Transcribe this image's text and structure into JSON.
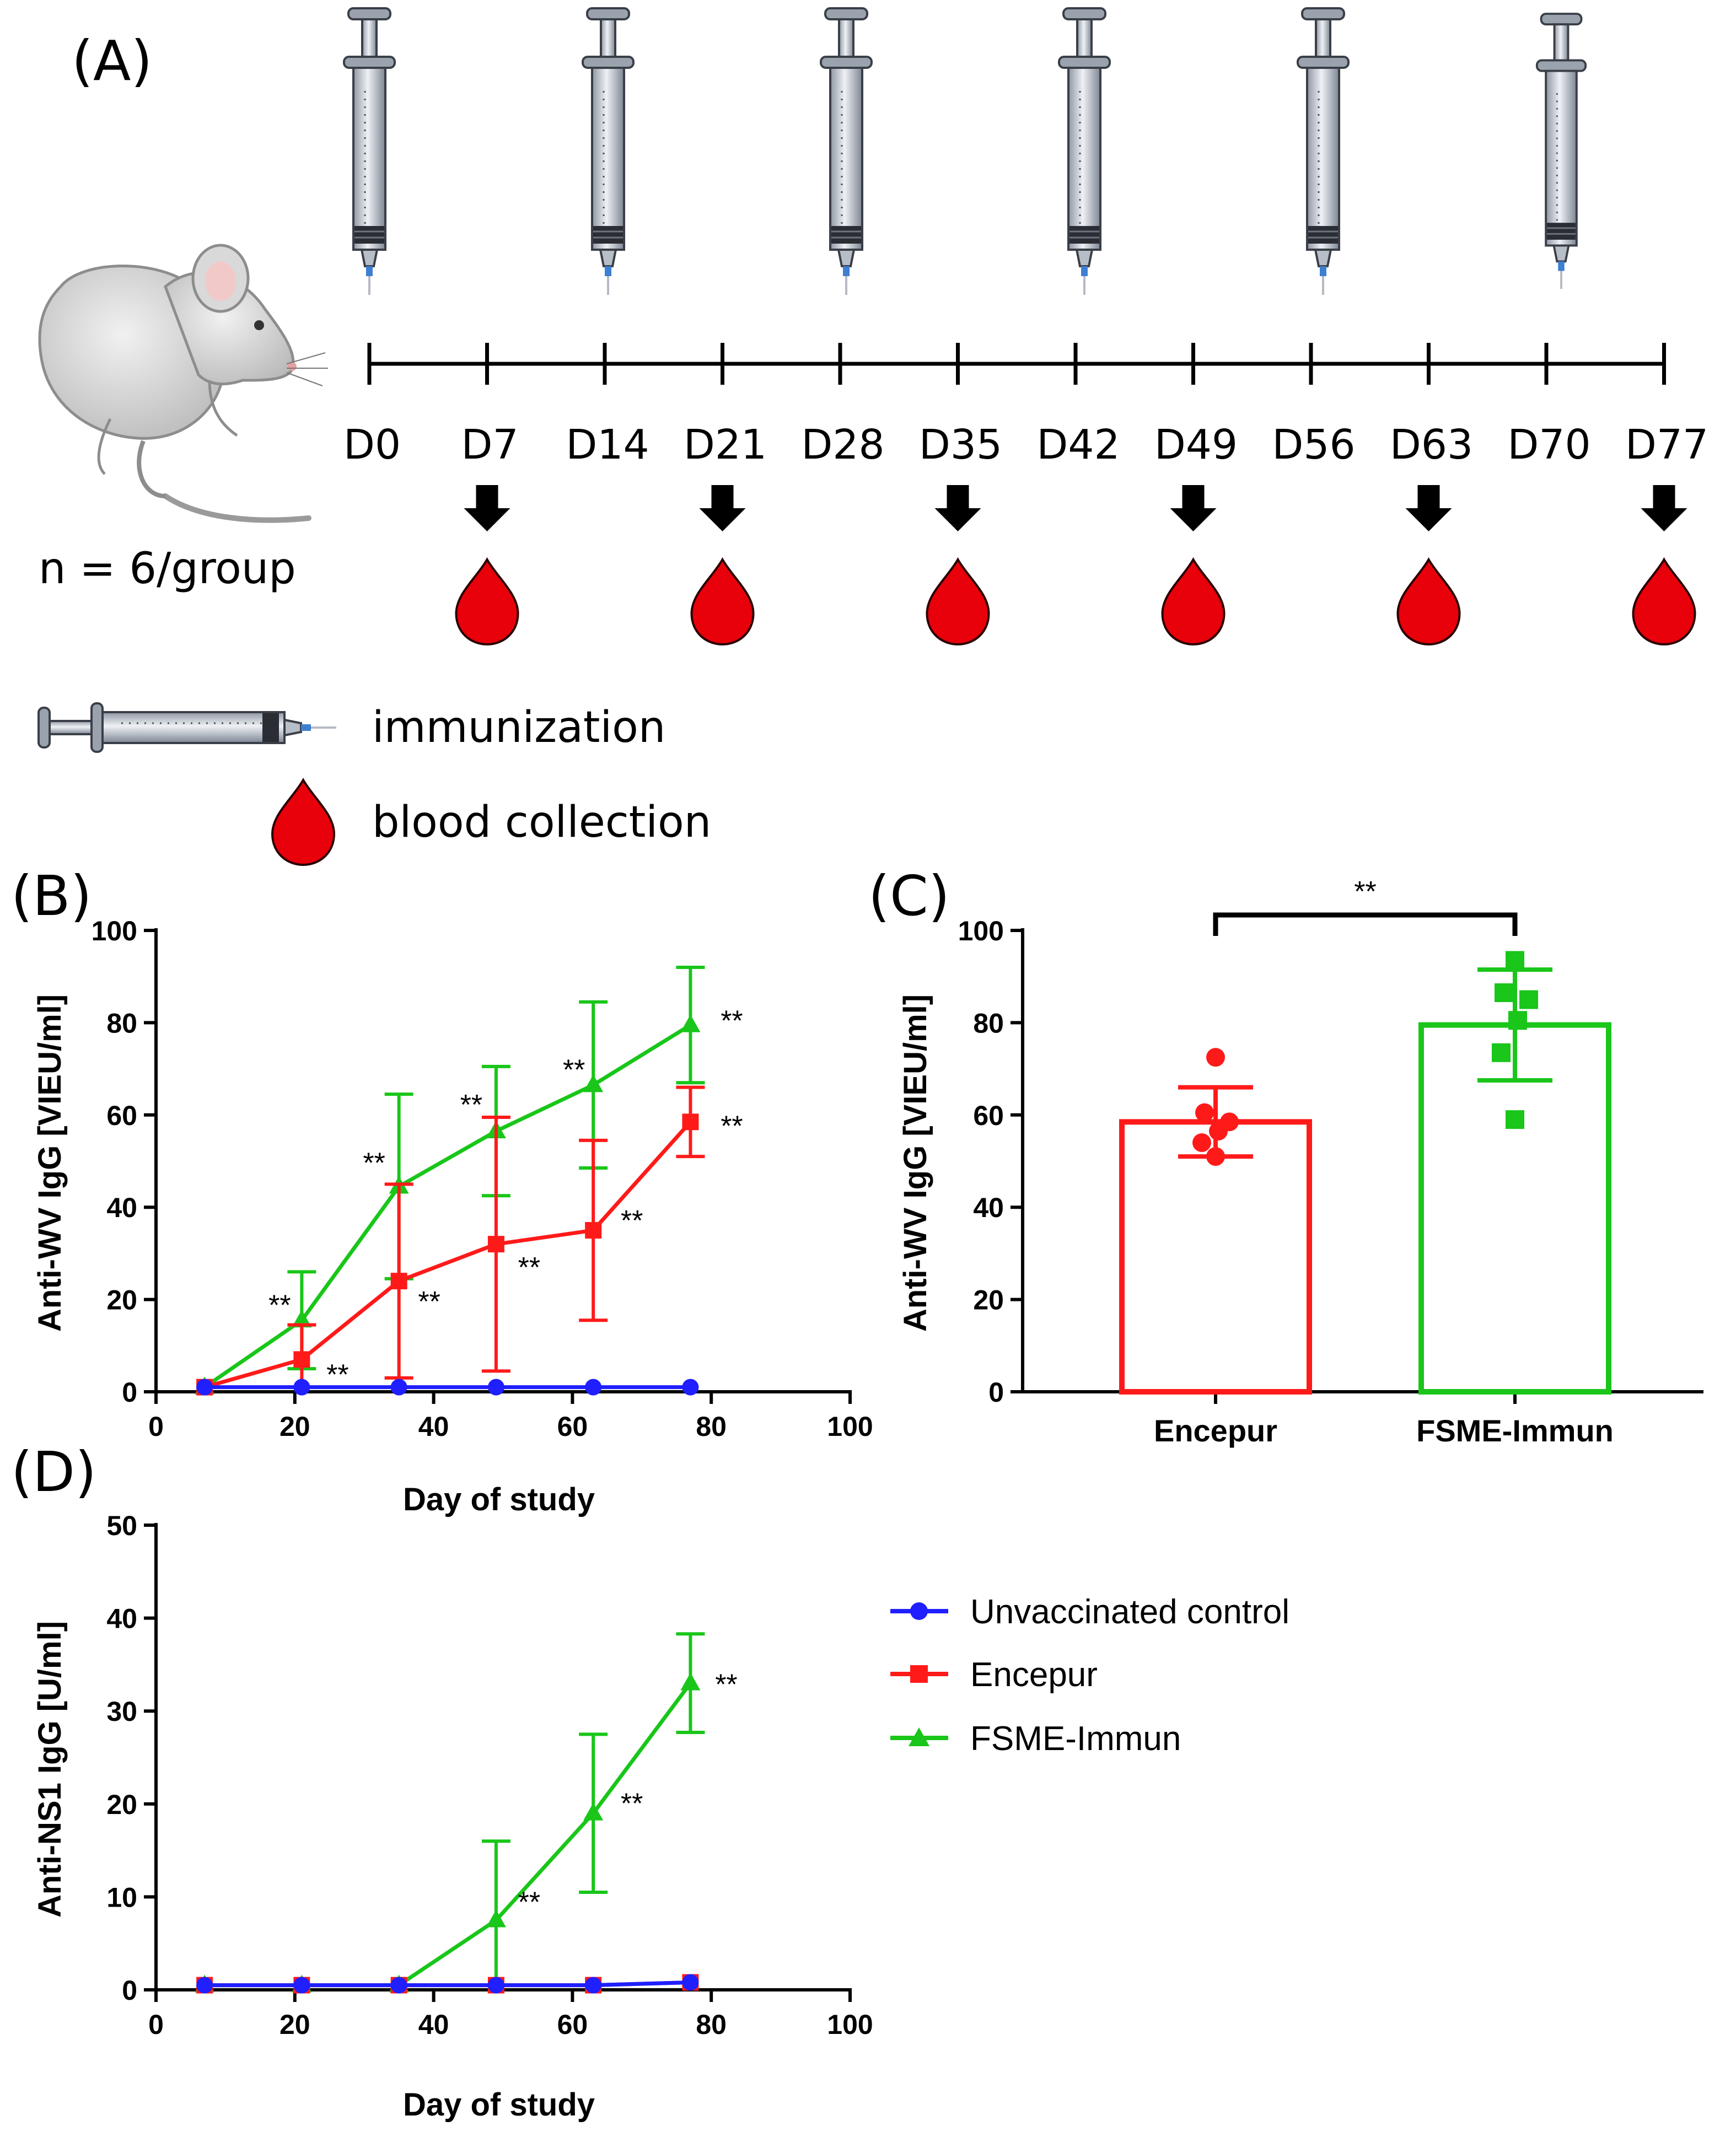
{
  "panels": {
    "a": "(A)",
    "b": "(B)",
    "c": "(C)",
    "d": "(D)"
  },
  "timeline": {
    "days": [
      "D0",
      "D7",
      "D14",
      "D21",
      "D28",
      "D35",
      "D42",
      "D49",
      "D56",
      "D63",
      "D70",
      "D77"
    ],
    "group_size": "n = 6/group",
    "legend_immunization": "immunization",
    "legend_blood": "blood collection"
  },
  "colors": {
    "control": "#1f1fff",
    "encepur": "#ff1a1a",
    "fsme": "#19c619",
    "blood": "#e8000b"
  },
  "chart_data": [
    {
      "id": "B",
      "type": "line",
      "xlabel": "Day of study",
      "ylabel": "Anti-WV IgG [VIEU/ml]",
      "xlim": [
        0,
        100
      ],
      "ylim": [
        0,
        100
      ],
      "xticks": [
        0,
        20,
        40,
        60,
        80,
        100
      ],
      "yticks": [
        0,
        20,
        40,
        60,
        80,
        100
      ],
      "x": [
        7,
        21,
        35,
        49,
        63,
        77
      ],
      "series": [
        {
          "name": "Unvaccinated control",
          "color_key": "control",
          "marker": "circle",
          "values": [
            1,
            1,
            1,
            1,
            1,
            1
          ],
          "errors": [
            0,
            0,
            0,
            0,
            0,
            0
          ]
        },
        {
          "name": "Encepur",
          "color_key": "encepur",
          "marker": "square",
          "values": [
            1,
            7,
            24,
            32,
            35,
            58.5
          ],
          "errors": [
            0,
            7.5,
            21,
            27.5,
            19.5,
            7.5
          ],
          "annotations": [
            "",
            "**",
            "**",
            "**",
            "**",
            "**"
          ]
        },
        {
          "name": "FSME-Immun",
          "color_key": "fsme",
          "marker": "triangle",
          "values": [
            1,
            15.5,
            44.5,
            56.5,
            66.5,
            79.5
          ],
          "errors": [
            0,
            10.5,
            20,
            14,
            18,
            12.5
          ],
          "annotations": [
            "",
            "**",
            "**",
            "**",
            "**",
            "**"
          ]
        }
      ]
    },
    {
      "id": "C",
      "type": "bar",
      "ylabel": "Anti-WV IgG [VIEU/ml]",
      "ylim": [
        0,
        100
      ],
      "yticks": [
        0,
        20,
        40,
        60,
        80,
        100
      ],
      "categories": [
        "Encepur",
        "FSME-Immun"
      ],
      "values": [
        58.5,
        79.5
      ],
      "errors": [
        7.5,
        12
      ],
      "points": [
        [
          72.5,
          60.5,
          58.5,
          56.5,
          54,
          51
        ],
        [
          93.5,
          86.5,
          85,
          80.5,
          73.5,
          59
        ]
      ],
      "significance": "**"
    },
    {
      "id": "D",
      "type": "line",
      "xlabel": "Day of study",
      "ylabel": "Anti-NS1 IgG [U/ml]",
      "xlim": [
        0,
        100
      ],
      "ylim": [
        0,
        50
      ],
      "xticks": [
        0,
        20,
        40,
        60,
        80,
        100
      ],
      "yticks": [
        0,
        10,
        20,
        30,
        40,
        50
      ],
      "x": [
        7,
        21,
        35,
        49,
        63,
        77
      ],
      "series": [
        {
          "name": "Unvaccinated control",
          "color_key": "control",
          "marker": "circle",
          "values": [
            0.5,
            0.5,
            0.5,
            0.5,
            0.5,
            0.8
          ],
          "errors": [
            0,
            0,
            0,
            0,
            0,
            0
          ]
        },
        {
          "name": "Encepur",
          "color_key": "encepur",
          "marker": "square",
          "values": [
            0.5,
            0.5,
            0.5,
            0.5,
            0.5,
            0.8
          ],
          "errors": [
            0,
            0,
            0,
            0,
            0,
            0
          ]
        },
        {
          "name": "FSME-Immun",
          "color_key": "fsme",
          "marker": "triangle",
          "values": [
            0.5,
            0.5,
            0.5,
            7.5,
            19,
            33
          ],
          "errors": [
            0,
            0,
            0,
            8.5,
            8.5,
            5.3
          ],
          "annotations": [
            "",
            "",
            "",
            "**",
            "**",
            "**"
          ]
        }
      ]
    }
  ],
  "legend": [
    "Unvaccinated control",
    "Encepur",
    "FSME-Immun"
  ]
}
